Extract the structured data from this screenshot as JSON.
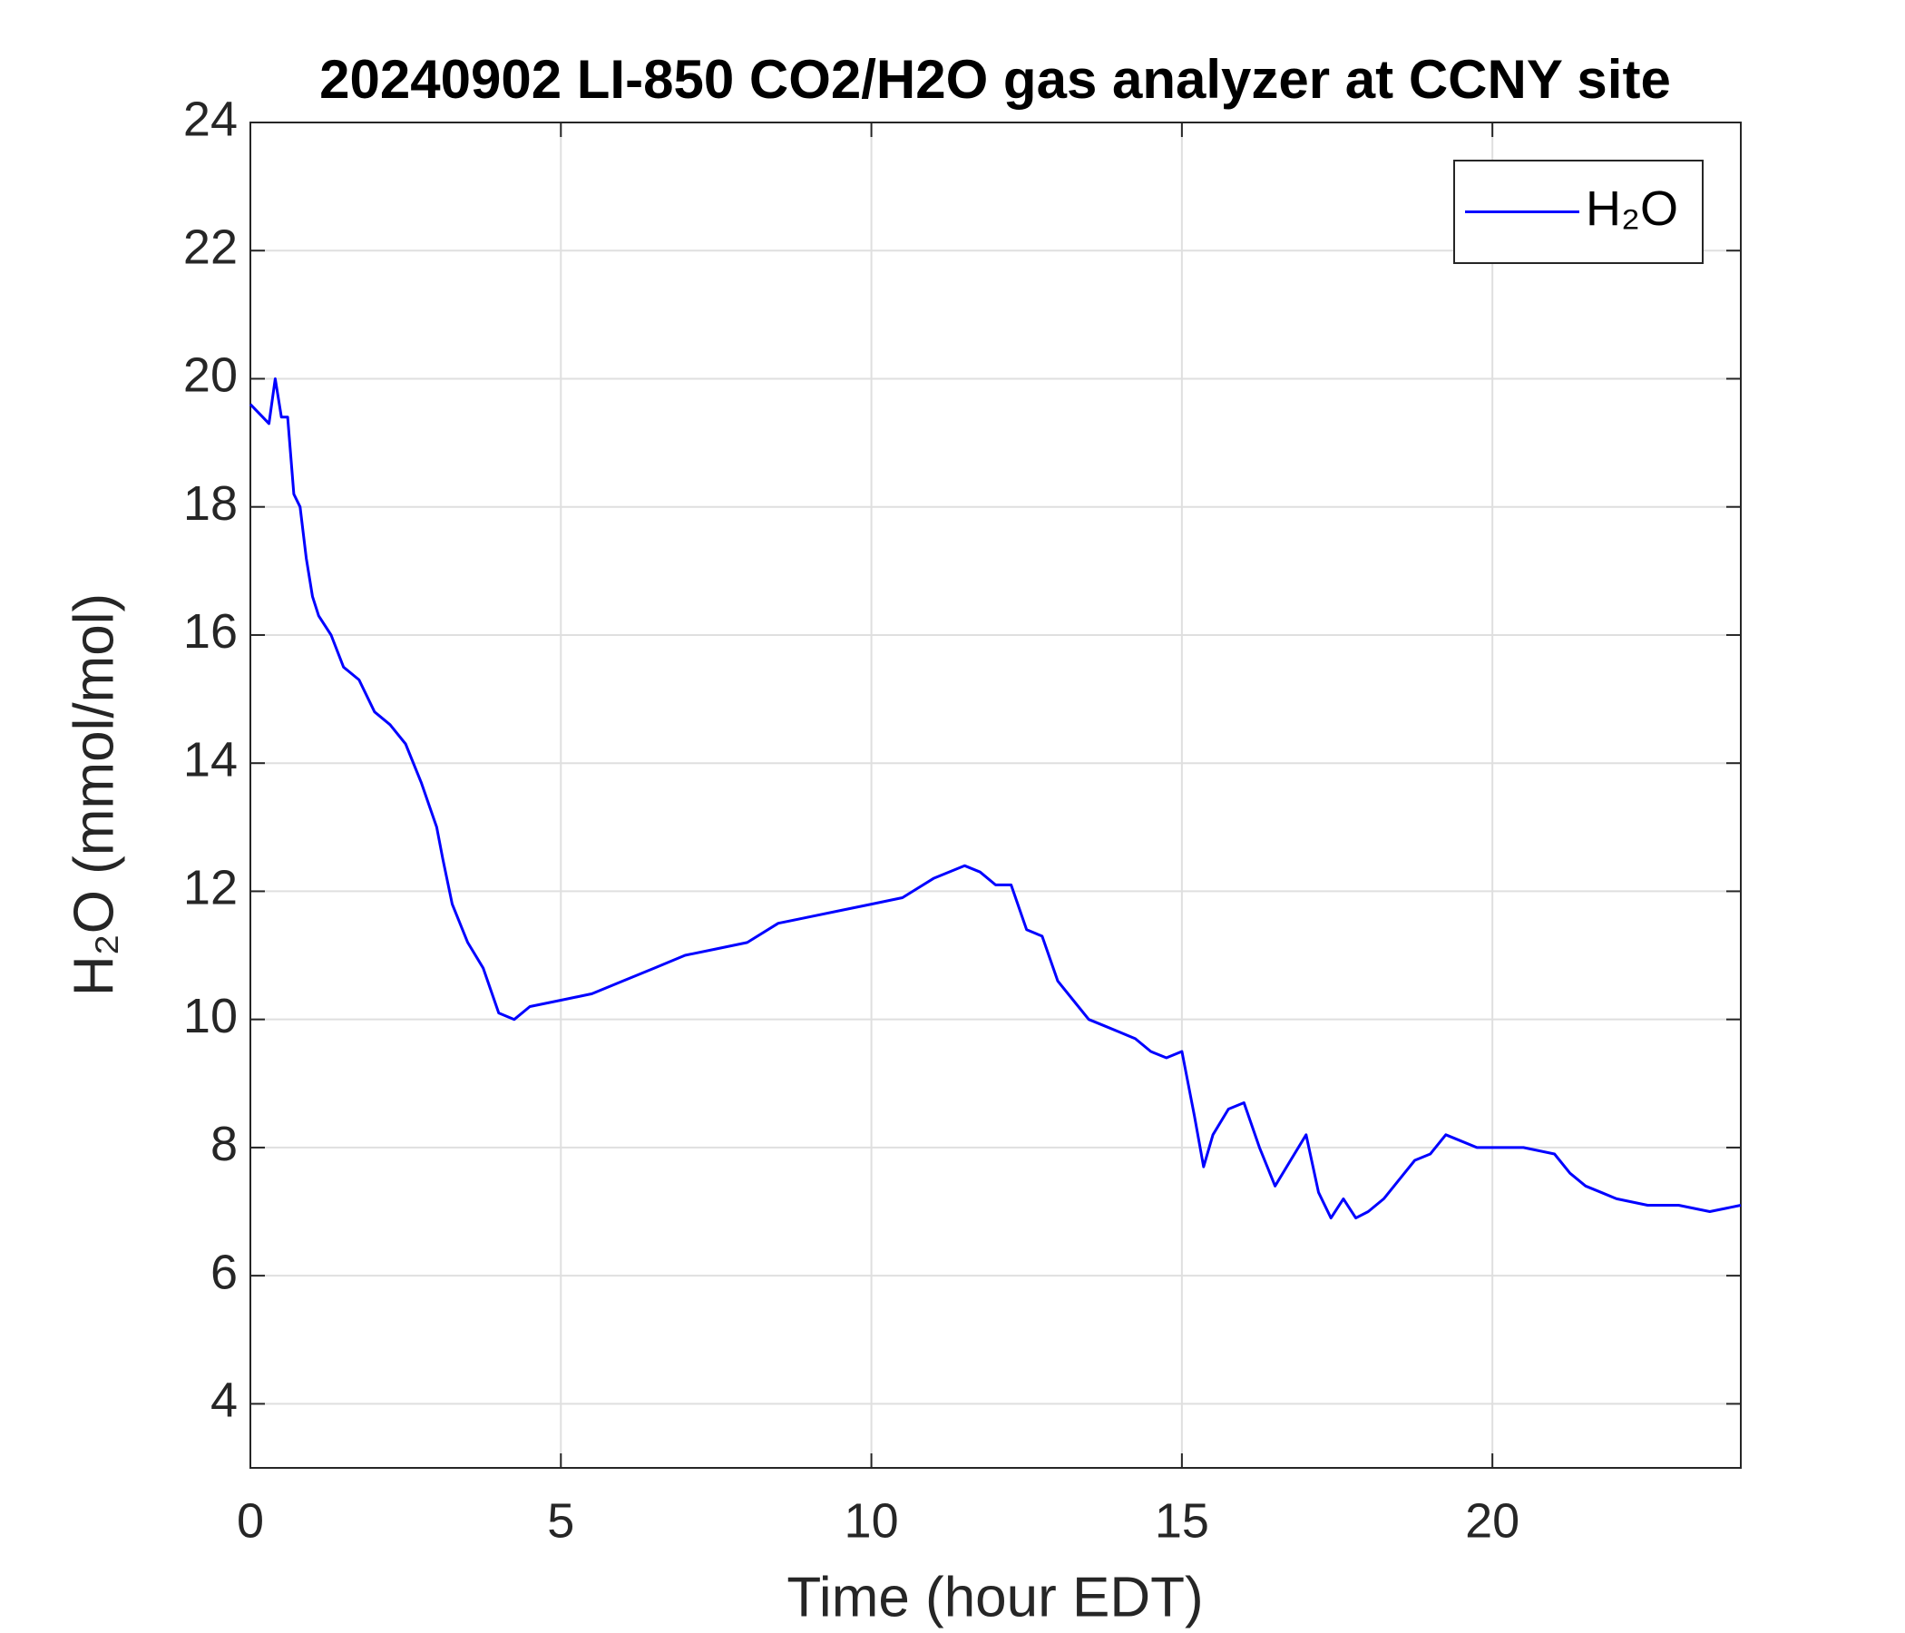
{
  "chart_data": {
    "type": "line",
    "title": "20240902 LI-850 CO2/H2O gas analyzer at CCNY site",
    "x_label": "Time (hour EDT)",
    "y_label": "H₂O (mmol/mol)",
    "x": [
      0,
      0.2,
      0.3,
      0.4,
      0.5,
      0.6,
      0.7,
      0.8,
      0.9,
      1.0,
      1.1,
      1.3,
      1.5,
      1.75,
      2.0,
      2.25,
      2.5,
      2.75,
      3.0,
      3.1,
      3.25,
      3.5,
      3.75,
      4.0,
      4.25,
      4.5,
      5.0,
      5.5,
      6.0,
      6.5,
      7.0,
      7.5,
      8.0,
      8.5,
      9.0,
      9.5,
      10.0,
      10.5,
      11.0,
      11.5,
      11.75,
      12.0,
      12.25,
      12.5,
      12.75,
      13.0,
      13.25,
      13.5,
      13.75,
      14.0,
      14.25,
      14.5,
      14.75,
      15.0,
      15.2,
      15.35,
      15.5,
      15.75,
      16.0,
      16.25,
      16.5,
      16.75,
      17.0,
      17.2,
      17.4,
      17.6,
      17.8,
      18.0,
      18.25,
      18.5,
      18.75,
      19.0,
      19.25,
      19.5,
      19.75,
      20.0,
      20.5,
      21.0,
      21.25,
      21.5,
      21.75,
      22.0,
      22.5,
      23.0,
      23.5,
      24.0
    ],
    "series": [
      {
        "name": "H₂O",
        "color": "#0000ff",
        "values": [
          19.6,
          19.4,
          19.3,
          20.0,
          19.4,
          19.4,
          18.2,
          18.0,
          17.2,
          16.6,
          16.3,
          16.0,
          15.5,
          15.3,
          14.8,
          14.6,
          14.3,
          13.7,
          13.0,
          12.5,
          11.8,
          11.2,
          10.8,
          10.1,
          10.0,
          10.2,
          10.3,
          10.4,
          10.6,
          10.8,
          11.0,
          11.1,
          11.2,
          11.5,
          11.6,
          11.7,
          11.8,
          11.9,
          12.2,
          12.4,
          12.3,
          12.1,
          12.1,
          11.4,
          11.3,
          10.6,
          10.3,
          10.0,
          9.9,
          9.8,
          9.7,
          9.5,
          9.4,
          9.5,
          8.5,
          7.7,
          8.2,
          8.6,
          8.7,
          8.0,
          7.4,
          7.8,
          8.2,
          7.3,
          6.9,
          7.2,
          6.9,
          7.0,
          7.2,
          7.5,
          7.8,
          7.9,
          8.2,
          8.1,
          8.0,
          8.0,
          8.0,
          7.9,
          7.6,
          7.4,
          7.3,
          7.2,
          7.1,
          7.1,
          7.0,
          7.1
        ]
      }
    ],
    "xlim": [
      0,
      24
    ],
    "xticks": [
      0,
      5,
      10,
      15,
      20
    ],
    "ylim": [
      3,
      24
    ],
    "yticks": [
      4,
      6,
      8,
      10,
      12,
      14,
      16,
      18,
      20,
      22,
      24
    ],
    "grid": true,
    "legend": "northeast"
  }
}
